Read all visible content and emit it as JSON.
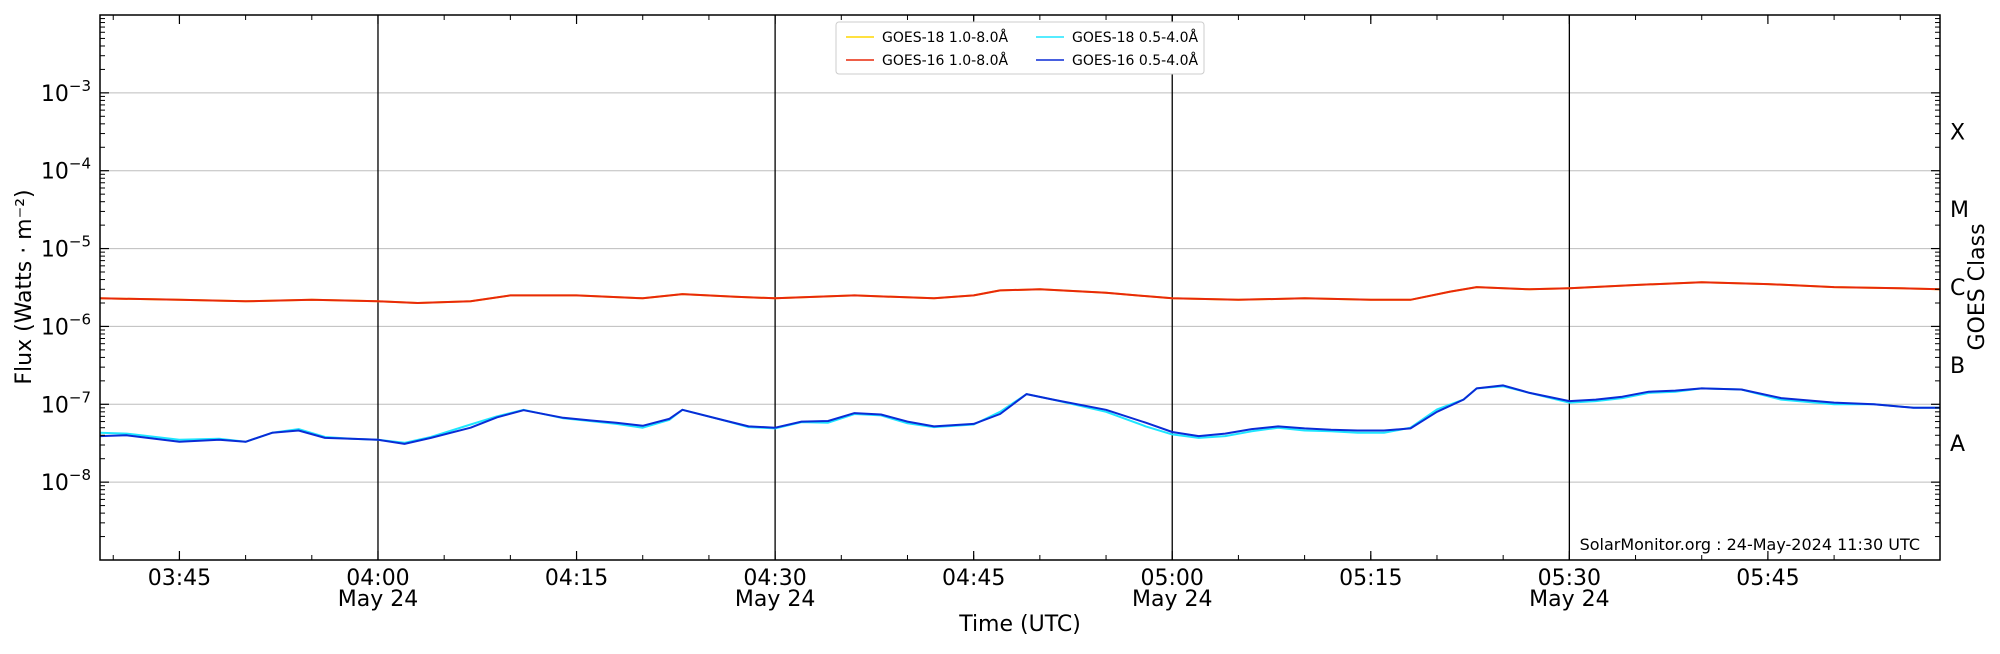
{
  "chart_data": {
    "type": "line",
    "title": "",
    "xlabel": "Time (UTC)",
    "ylabel": "Flux (Watts · m⁻²)",
    "y2label": "GOES Class",
    "yscale": "log",
    "ylim": [
      1e-09,
      0.01
    ],
    "xlim": [
      "03:39",
      "05:58"
    ],
    "grid": "horizontal at each decade",
    "legend_position": "top-center",
    "credit": "SolarMonitor.org : 24-May-2024 11:30 UTC",
    "x_ticks": [
      {
        "time": "03:45",
        "label": "03:45",
        "date": ""
      },
      {
        "time": "04:00",
        "label": "04:00",
        "date": "May 24"
      },
      {
        "time": "04:15",
        "label": "04:15",
        "date": ""
      },
      {
        "time": "04:30",
        "label": "04:30",
        "date": "May 24"
      },
      {
        "time": "04:45",
        "label": "04:45",
        "date": ""
      },
      {
        "time": "05:00",
        "label": "05:00",
        "date": "May 24"
      },
      {
        "time": "05:15",
        "label": "05:15",
        "date": ""
      },
      {
        "time": "05:30",
        "label": "05:30",
        "date": "May 24"
      },
      {
        "time": "05:45",
        "label": "05:45",
        "date": ""
      }
    ],
    "vertical_markers": [
      "04:00",
      "04:30",
      "05:00",
      "05:30"
    ],
    "y_ticks": [
      {
        "exp": -8,
        "value": 1e-08
      },
      {
        "exp": -7,
        "value": 1e-07
      },
      {
        "exp": -6,
        "value": 1e-06
      },
      {
        "exp": -5,
        "value": 1e-05
      },
      {
        "exp": -4,
        "value": 0.0001
      },
      {
        "exp": -3,
        "value": 0.001
      }
    ],
    "goes_classes": [
      {
        "label": "A",
        "value": 3.2e-08
      },
      {
        "label": "B",
        "value": 3.2e-07
      },
      {
        "label": "C",
        "value": 3.2e-06
      },
      {
        "label": "M",
        "value": 3.2e-05
      },
      {
        "label": "X",
        "value": 0.00032
      }
    ],
    "series": [
      {
        "name": "GOES-18 1.0-8.0Å",
        "color": "#ffd700",
        "x": [
          "03:39",
          "03:45",
          "03:50",
          "03:55",
          "04:00",
          "04:03",
          "04:07",
          "04:10",
          "04:15",
          "04:20",
          "04:23",
          "04:27",
          "04:30",
          "04:36",
          "04:42",
          "04:45",
          "04:47",
          "04:50",
          "04:55",
          "05:00",
          "05:05",
          "05:10",
          "05:15",
          "05:18",
          "05:21",
          "05:23",
          "05:27",
          "05:30",
          "05:35",
          "05:40",
          "05:45",
          "05:50",
          "05:55",
          "05:58"
        ],
        "values": [
          2.3e-06,
          2.2e-06,
          2.1e-06,
          2.2e-06,
          2.1e-06,
          2e-06,
          2.1e-06,
          2.5e-06,
          2.5e-06,
          2.3e-06,
          2.6e-06,
          2.4e-06,
          2.3e-06,
          2.5e-06,
          2.3e-06,
          2.5e-06,
          2.9e-06,
          3e-06,
          2.7e-06,
          2.3e-06,
          2.2e-06,
          2.3e-06,
          2.2e-06,
          2.2e-06,
          2.8e-06,
          3.2e-06,
          3e-06,
          3.1e-06,
          3.4e-06,
          3.7e-06,
          3.5e-06,
          3.2e-06,
          3.1e-06,
          3e-06
        ]
      },
      {
        "name": "GOES-16 1.0-8.0Å",
        "color": "#e8290b",
        "x": [
          "03:39",
          "03:45",
          "03:50",
          "03:55",
          "04:00",
          "04:03",
          "04:07",
          "04:10",
          "04:15",
          "04:20",
          "04:23",
          "04:27",
          "04:30",
          "04:36",
          "04:42",
          "04:45",
          "04:47",
          "04:50",
          "04:55",
          "05:00",
          "05:05",
          "05:10",
          "05:15",
          "05:18",
          "05:21",
          "05:23",
          "05:27",
          "05:30",
          "05:35",
          "05:40",
          "05:45",
          "05:50",
          "05:55",
          "05:58"
        ],
        "values": [
          2.3e-06,
          2.2e-06,
          2.1e-06,
          2.2e-06,
          2.1e-06,
          2e-06,
          2.1e-06,
          2.5e-06,
          2.5e-06,
          2.3e-06,
          2.6e-06,
          2.4e-06,
          2.3e-06,
          2.5e-06,
          2.3e-06,
          2.5e-06,
          2.9e-06,
          3e-06,
          2.7e-06,
          2.3e-06,
          2.2e-06,
          2.3e-06,
          2.2e-06,
          2.2e-06,
          2.8e-06,
          3.2e-06,
          3e-06,
          3.1e-06,
          3.4e-06,
          3.7e-06,
          3.5e-06,
          3.2e-06,
          3.1e-06,
          3e-06
        ]
      },
      {
        "name": "GOES-18 0.5-4.0Å",
        "color": "#1fe6ff",
        "x": [
          "03:39",
          "03:41",
          "03:45",
          "03:48",
          "03:50",
          "03:52",
          "03:54",
          "03:56",
          "03:58",
          "04:00",
          "04:02",
          "04:04",
          "04:07",
          "04:09",
          "04:11",
          "04:14",
          "04:16",
          "04:18",
          "04:20",
          "04:22",
          "04:23",
          "04:26",
          "04:28",
          "04:30",
          "04:32",
          "04:34",
          "04:36",
          "04:38",
          "04:40",
          "04:42",
          "04:45",
          "04:47",
          "04:49",
          "04:51",
          "04:55",
          "04:58",
          "05:00",
          "05:02",
          "05:04",
          "05:06",
          "05:08",
          "05:10",
          "05:12",
          "05:14",
          "05:16",
          "05:18",
          "05:20",
          "05:22",
          "05:23",
          "05:25",
          "05:27",
          "05:30",
          "05:32",
          "05:34",
          "05:36",
          "05:38",
          "05:40",
          "05:43",
          "05:46",
          "05:50",
          "05:53",
          "05:56",
          "05:58"
        ],
        "values": [
          4.3e-08,
          4.2e-08,
          3.5e-08,
          3.6e-08,
          3.3e-08,
          4.3e-08,
          4.8e-08,
          3.8e-08,
          3.6e-08,
          3.5e-08,
          3.2e-08,
          3.8e-08,
          5.5e-08,
          7e-08,
          8.5e-08,
          6.6e-08,
          6.1e-08,
          5.6e-08,
          5e-08,
          6.3e-08,
          8.5e-08,
          6.3e-08,
          5.1e-08,
          4.9e-08,
          5.9e-08,
          5.8e-08,
          7.5e-08,
          7.2e-08,
          5.7e-08,
          5.1e-08,
          5.5e-08,
          8e-08,
          1.35e-07,
          1.15e-07,
          8e-08,
          5.2e-08,
          4.1e-08,
          3.7e-08,
          3.9e-08,
          4.5e-08,
          5e-08,
          4.6e-08,
          4.5e-08,
          4.3e-08,
          4.3e-08,
          5e-08,
          8.6e-08,
          1.15e-07,
          1.6e-07,
          1.7e-07,
          1.4e-07,
          1.05e-07,
          1.1e-07,
          1.2e-07,
          1.4e-07,
          1.45e-07,
          1.6e-07,
          1.55e-07,
          1.15e-07,
          1e-07,
          1e-07,
          9e-08,
          9e-08
        ]
      },
      {
        "name": "GOES-16 0.5-4.0Å",
        "color": "#0a2bd6",
        "x": [
          "03:39",
          "03:41",
          "03:45",
          "03:48",
          "03:50",
          "03:52",
          "03:54",
          "03:56",
          "03:58",
          "04:00",
          "04:02",
          "04:04",
          "04:07",
          "04:09",
          "04:11",
          "04:14",
          "04:16",
          "04:18",
          "04:20",
          "04:22",
          "04:23",
          "04:26",
          "04:28",
          "04:30",
          "04:32",
          "04:34",
          "04:36",
          "04:38",
          "04:40",
          "04:42",
          "04:45",
          "04:47",
          "04:49",
          "04:51",
          "04:55",
          "04:58",
          "05:00",
          "05:02",
          "05:04",
          "05:06",
          "05:08",
          "05:10",
          "05:12",
          "05:14",
          "05:16",
          "05:18",
          "05:20",
          "05:22",
          "05:23",
          "05:25",
          "05:27",
          "05:30",
          "05:32",
          "05:34",
          "05:36",
          "05:38",
          "05:40",
          "05:43",
          "05:46",
          "05:50",
          "05:53",
          "05:56",
          "05:58"
        ],
        "values": [
          3.9e-08,
          4e-08,
          3.3e-08,
          3.5e-08,
          3.3e-08,
          4.3e-08,
          4.6e-08,
          3.7e-08,
          3.6e-08,
          3.5e-08,
          3.1e-08,
          3.7e-08,
          5e-08,
          6.8e-08,
          8.4e-08,
          6.7e-08,
          6.2e-08,
          5.8e-08,
          5.3e-08,
          6.5e-08,
          8.5e-08,
          6.3e-08,
          5.2e-08,
          5e-08,
          6e-08,
          6.1e-08,
          7.7e-08,
          7.4e-08,
          6e-08,
          5.2e-08,
          5.6e-08,
          7.5e-08,
          1.35e-07,
          1.15e-07,
          8.5e-08,
          5.8e-08,
          4.4e-08,
          3.9e-08,
          4.2e-08,
          4.8e-08,
          5.2e-08,
          4.9e-08,
          4.7e-08,
          4.6e-08,
          4.6e-08,
          4.9e-08,
          8e-08,
          1.15e-07,
          1.6e-07,
          1.75e-07,
          1.4e-07,
          1.1e-07,
          1.15e-07,
          1.25e-07,
          1.45e-07,
          1.5e-07,
          1.6e-07,
          1.55e-07,
          1.2e-07,
          1.05e-07,
          1e-07,
          9e-08,
          9e-08
        ]
      }
    ]
  }
}
